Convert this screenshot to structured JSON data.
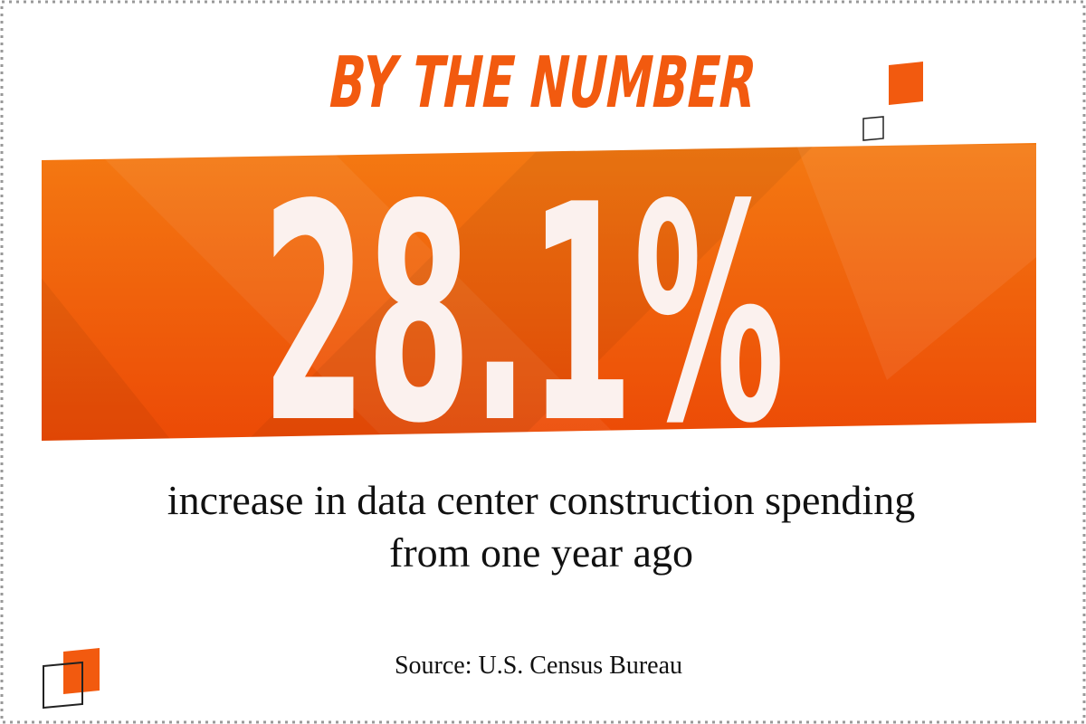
{
  "title": "BY THE NUMBER",
  "stat": "28.1%",
  "description": [
    "increase in data center construction spending",
    "from one year ago"
  ],
  "source": "Source: U.S. Census Bureau"
}
